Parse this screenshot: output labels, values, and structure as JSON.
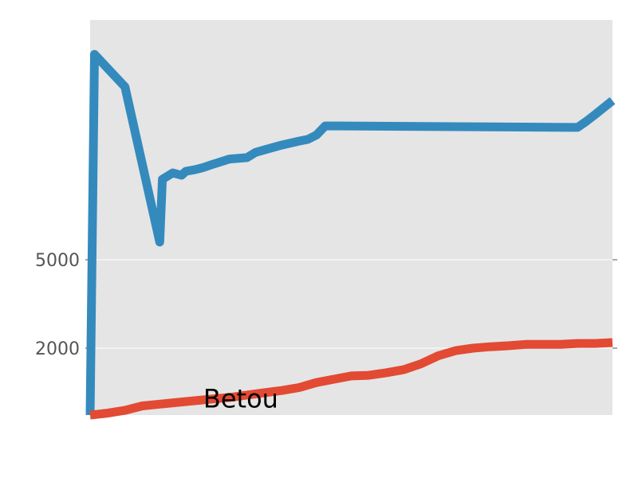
{
  "chart_data": {
    "type": "line",
    "title": "",
    "xlabel": "",
    "ylabel": "",
    "y_scale": "log",
    "ylim": [
      1000,
      60000
    ],
    "grid": true,
    "y_ticks": [
      {
        "value": 2000,
        "label": "2000"
      },
      {
        "value": 5000,
        "label": "5000"
      }
    ],
    "x_ticks": [],
    "annotations": [
      {
        "text": "Betou",
        "x": 13,
        "y": 1080
      }
    ],
    "series": [
      {
        "color": "#348abd",
        "x": [
          0,
          0.5,
          4,
          8,
          8.3,
          9.5,
          10.5,
          11,
          12,
          13,
          14,
          16,
          18,
          19,
          20,
          22,
          24,
          25,
          26,
          27,
          29,
          55,
          56,
          57,
          58,
          59,
          60
        ],
        "y": [
          1000,
          42000,
          30000,
          6000,
          11500,
          12300,
          12000,
          12500,
          12700,
          13000,
          13400,
          14200,
          14400,
          15200,
          15600,
          16400,
          17100,
          17400,
          18200,
          20000,
          20000,
          19700,
          19700,
          21000,
          22500,
          24200,
          26000
        ]
      },
      {
        "color": "#e24a33",
        "x": [
          0,
          2,
          4,
          6,
          8,
          10,
          12,
          14,
          16,
          18,
          20,
          22,
          24,
          26,
          28,
          30,
          32,
          34,
          36,
          38,
          40,
          42,
          44,
          46,
          48,
          50,
          52,
          54,
          56,
          58,
          60
        ],
        "y": [
          1000,
          1020,
          1050,
          1100,
          1120,
          1140,
          1160,
          1180,
          1200,
          1230,
          1260,
          1290,
          1330,
          1400,
          1450,
          1500,
          1510,
          1550,
          1600,
          1700,
          1850,
          1950,
          2000,
          2030,
          2050,
          2080,
          2080,
          2080,
          2100,
          2100,
          2120
        ]
      }
    ]
  }
}
